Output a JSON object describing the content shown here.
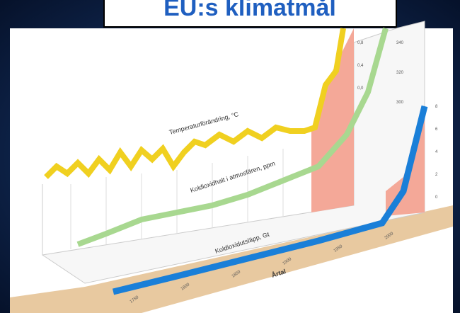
{
  "header": {
    "title": "EU:s klimatmål"
  },
  "diagram": {
    "labels": {
      "temperature": "Temperaturförändring, °C",
      "co2": "Koldioxidhalt i atmosfären, ppm",
      "emissions": "Koldioxidutsläpp, Gt",
      "years": "Årtal"
    },
    "temperature_ticks": [
      "0,8",
      "0,4",
      "0,0"
    ],
    "co2_ticks": [
      "340",
      "320",
      "300"
    ],
    "emission_ticks": [
      "8",
      "6",
      "4",
      "2",
      "0"
    ],
    "year_ticks": [
      "1750",
      "1800",
      "1850",
      "1900",
      "1950",
      "2000"
    ]
  }
}
